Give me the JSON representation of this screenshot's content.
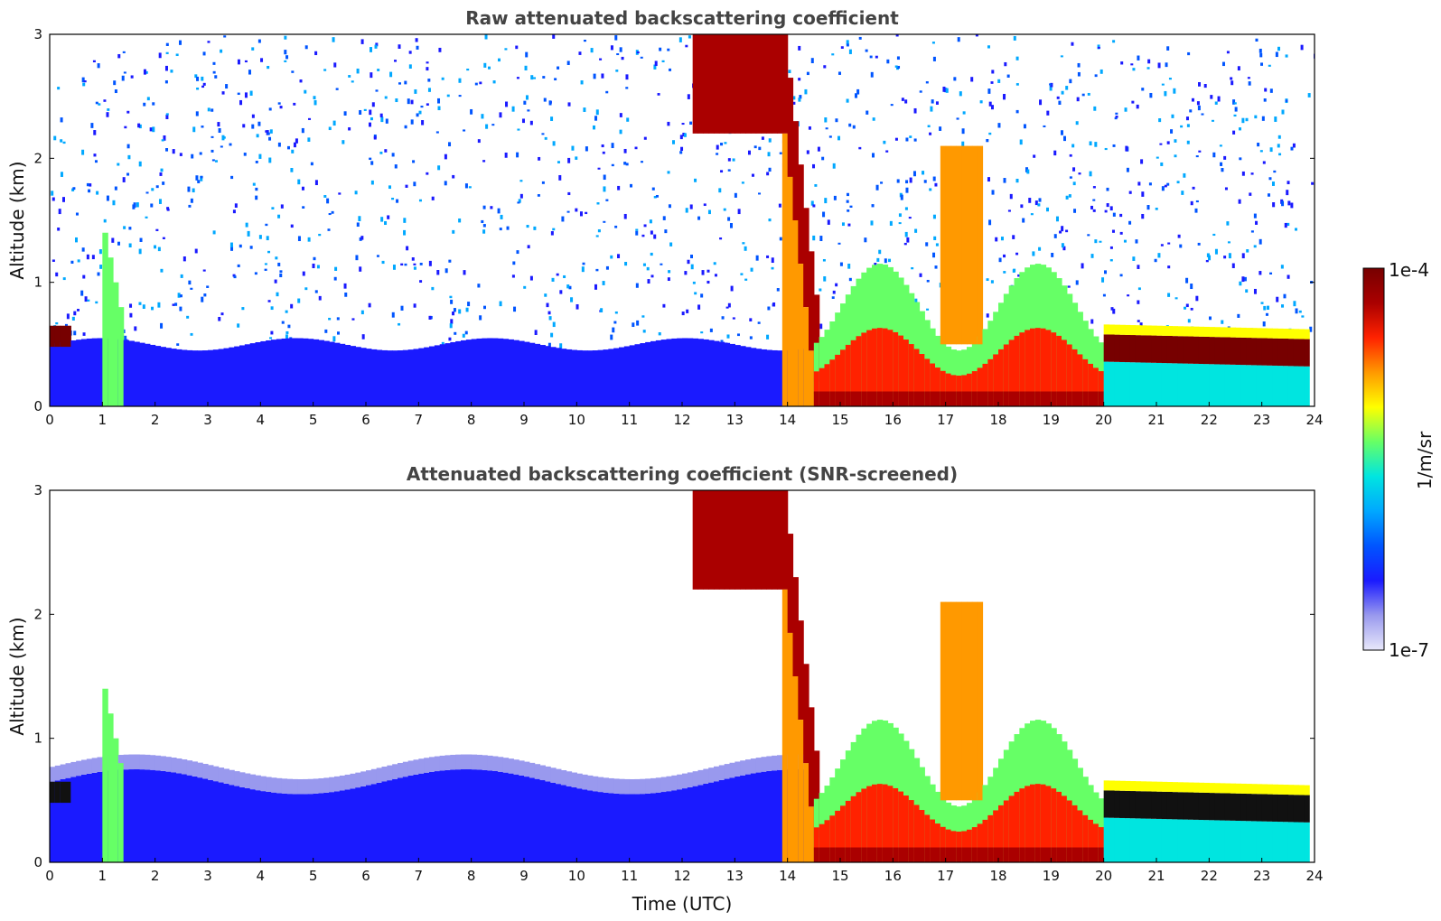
{
  "chart_data": [
    {
      "type": "heatmap",
      "title": "Raw attenuated backscattering coefficient",
      "xlabel": "",
      "ylabel": "Altitude (km)",
      "xlim": [
        0,
        24
      ],
      "ylim": [
        0,
        3
      ],
      "xticks": [
        "0",
        "1",
        "2",
        "3",
        "4",
        "5",
        "6",
        "7",
        "8",
        "9",
        "10",
        "11",
        "12",
        "13",
        "14",
        "15",
        "16",
        "17",
        "18",
        "19",
        "20",
        "21",
        "22",
        "23",
        "24"
      ],
      "yticks": [
        "0",
        "1",
        "2",
        "3"
      ],
      "features": [
        {
          "name": "boundary layer aerosol",
          "t0": 0,
          "t1": 14.4,
          "top_km": 0.5,
          "level": 0.2
        },
        {
          "name": "clear-air noise",
          "t0": 0,
          "t1": 24,
          "top_km": 3.0,
          "level": 0.15
        },
        {
          "name": "descending precipitation/cloud band",
          "t0": 12.3,
          "t1": 14.6,
          "top_km": 3.0,
          "level": 0.9
        },
        {
          "name": "low cloud / rain",
          "t0": 14.5,
          "t1": 20,
          "top_km": 1.2,
          "level": 0.85
        },
        {
          "name": "stratocumulus layer",
          "t0": 20,
          "t1": 23.8,
          "top_km": 0.65,
          "level": 1.0
        }
      ]
    },
    {
      "type": "heatmap",
      "title": "Attenuated backscattering coefficient (SNR-screened)",
      "xlabel": "Time (UTC)",
      "ylabel": "Altitude (km)",
      "xlim": [
        0,
        24
      ],
      "ylim": [
        0,
        3
      ],
      "xticks": [
        "0",
        "1",
        "2",
        "3",
        "4",
        "5",
        "6",
        "7",
        "8",
        "9",
        "10",
        "11",
        "12",
        "13",
        "14",
        "15",
        "16",
        "17",
        "18",
        "19",
        "20",
        "21",
        "22",
        "23",
        "24"
      ],
      "yticks": [
        "0",
        "1",
        "2",
        "3"
      ],
      "features": [
        {
          "name": "boundary layer aerosol",
          "t0": 0,
          "t1": 14.4,
          "top_km": 0.7,
          "level": 0.2
        },
        {
          "name": "descending precipitation/cloud band",
          "t0": 12.3,
          "t1": 14.6,
          "top_km": 3.0,
          "level": 0.9
        },
        {
          "name": "low cloud / rain",
          "t0": 14.5,
          "t1": 20,
          "top_km": 1.2,
          "level": 0.85
        },
        {
          "name": "stratocumulus layer (saturated)",
          "t0": 20,
          "t1": 23.8,
          "top_km": 0.65,
          "level": 1.1
        }
      ]
    }
  ],
  "colorbar": {
    "label": "1/m/sr",
    "max_label": "1e-4",
    "min_label": "1e-7",
    "stops": [
      "#e8e8fa",
      "#9999ee",
      "#1a1aff",
      "#0055ff",
      "#00a8ff",
      "#00e5e0",
      "#66ff66",
      "#ffff00",
      "#ff9900",
      "#ff2200",
      "#aa0000",
      "#770000"
    ]
  }
}
